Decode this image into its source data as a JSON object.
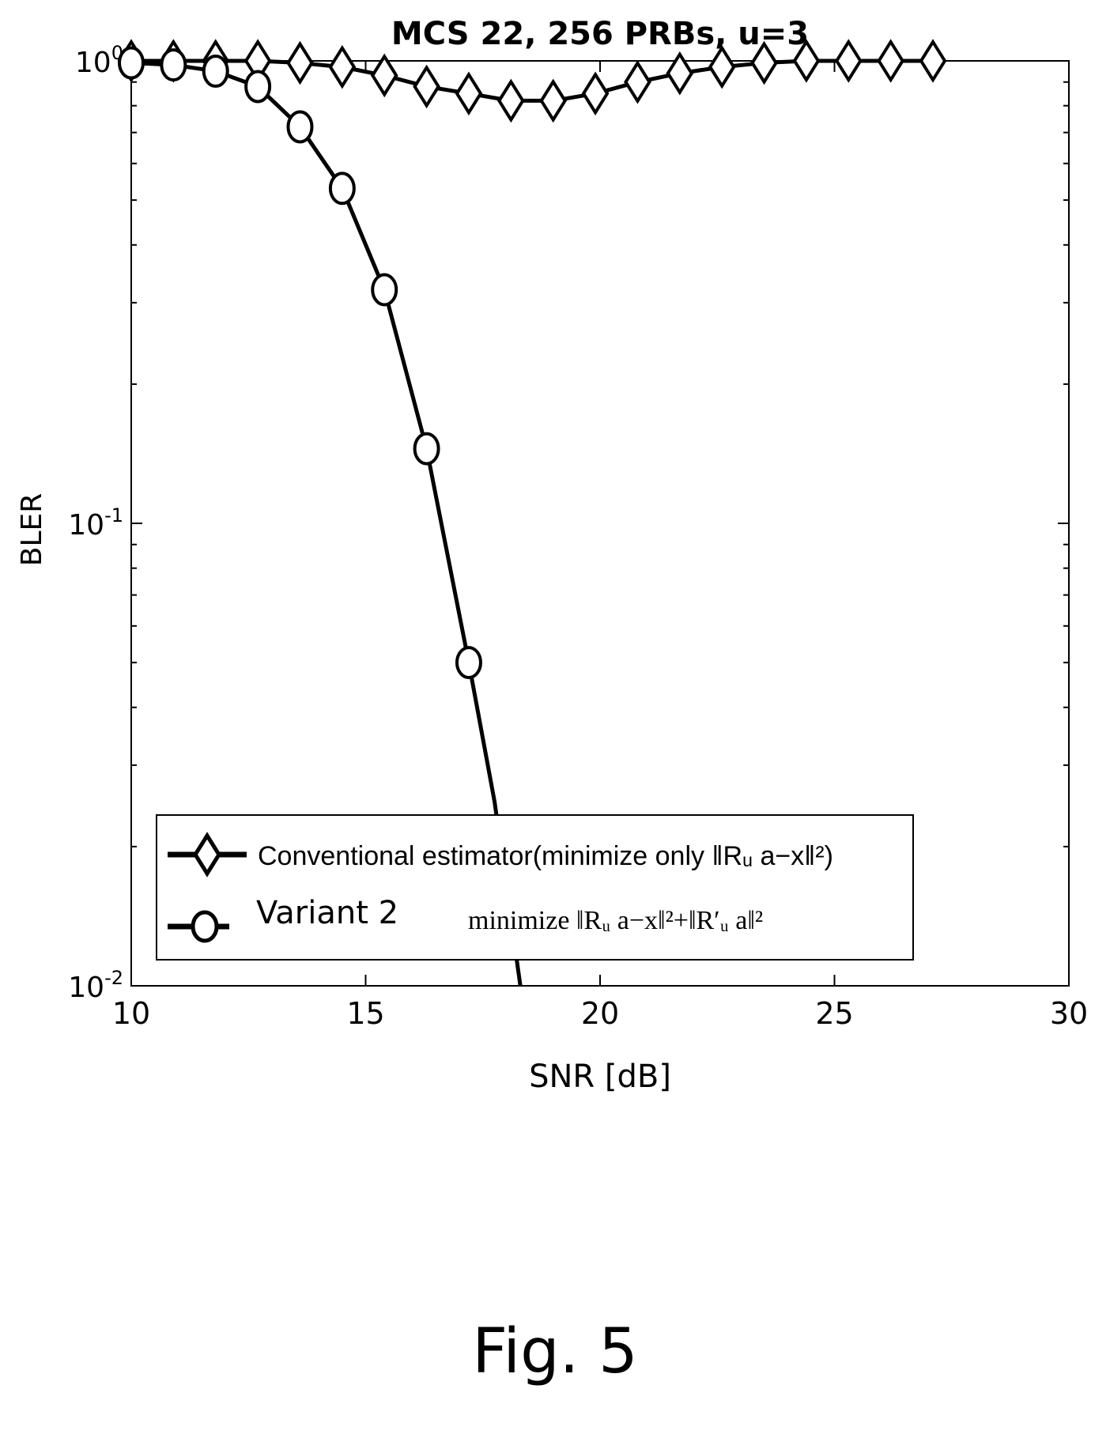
{
  "figure": {
    "caption": "Fig. 5"
  },
  "chart_data": {
    "type": "line",
    "title": "MCS 22, 256 PRBs, u=3",
    "xlabel": "SNR [dB]",
    "ylabel": "BLER",
    "xlim": [
      10,
      30
    ],
    "ylim": [
      0.01,
      1
    ],
    "yscale": "log",
    "xticks": [
      10,
      15,
      20,
      25,
      30
    ],
    "yticks": [
      {
        "value": 0.01,
        "mantissa": "10",
        "exp": "-2"
      },
      {
        "value": 0.1,
        "mantissa": "10",
        "exp": "-1"
      },
      {
        "value": 1,
        "mantissa": "10",
        "exp": "0"
      }
    ],
    "grid": false,
    "legend_position": "bottom-center",
    "series": [
      {
        "name": "Conventional estimator(minimize only ‖Rᵤ a−x‖²)",
        "marker": "diamond",
        "color": "#000000",
        "x": [
          10,
          10.9,
          11.8,
          12.7,
          13.6,
          14.5,
          15.4,
          16.3,
          17.2,
          18.1,
          19.0,
          19.9,
          20.8,
          21.7,
          22.6,
          23.5,
          24.4,
          25.3,
          26.2,
          27.1
        ],
        "y": [
          1.0,
          1.0,
          1.0,
          1.0,
          0.99,
          0.97,
          0.93,
          0.88,
          0.85,
          0.82,
          0.82,
          0.85,
          0.9,
          0.94,
          0.97,
          0.99,
          1.0,
          1.0,
          1.0,
          1.0
        ]
      },
      {
        "name": "Variant 2",
        "legend_formula": "minimize ‖Rᵤ a−x‖²+‖R′ᵤ a‖²",
        "marker": "circle",
        "color": "#000000",
        "x": [
          10,
          10.9,
          11.8,
          12.7,
          13.6,
          14.5,
          15.4,
          16.3,
          17.2,
          17.75,
          18.3
        ],
        "y": [
          0.99,
          0.98,
          0.95,
          0.88,
          0.72,
          0.53,
          0.32,
          0.145,
          0.05,
          0.025,
          0.01
        ],
        "marker_count": 9
      }
    ]
  }
}
